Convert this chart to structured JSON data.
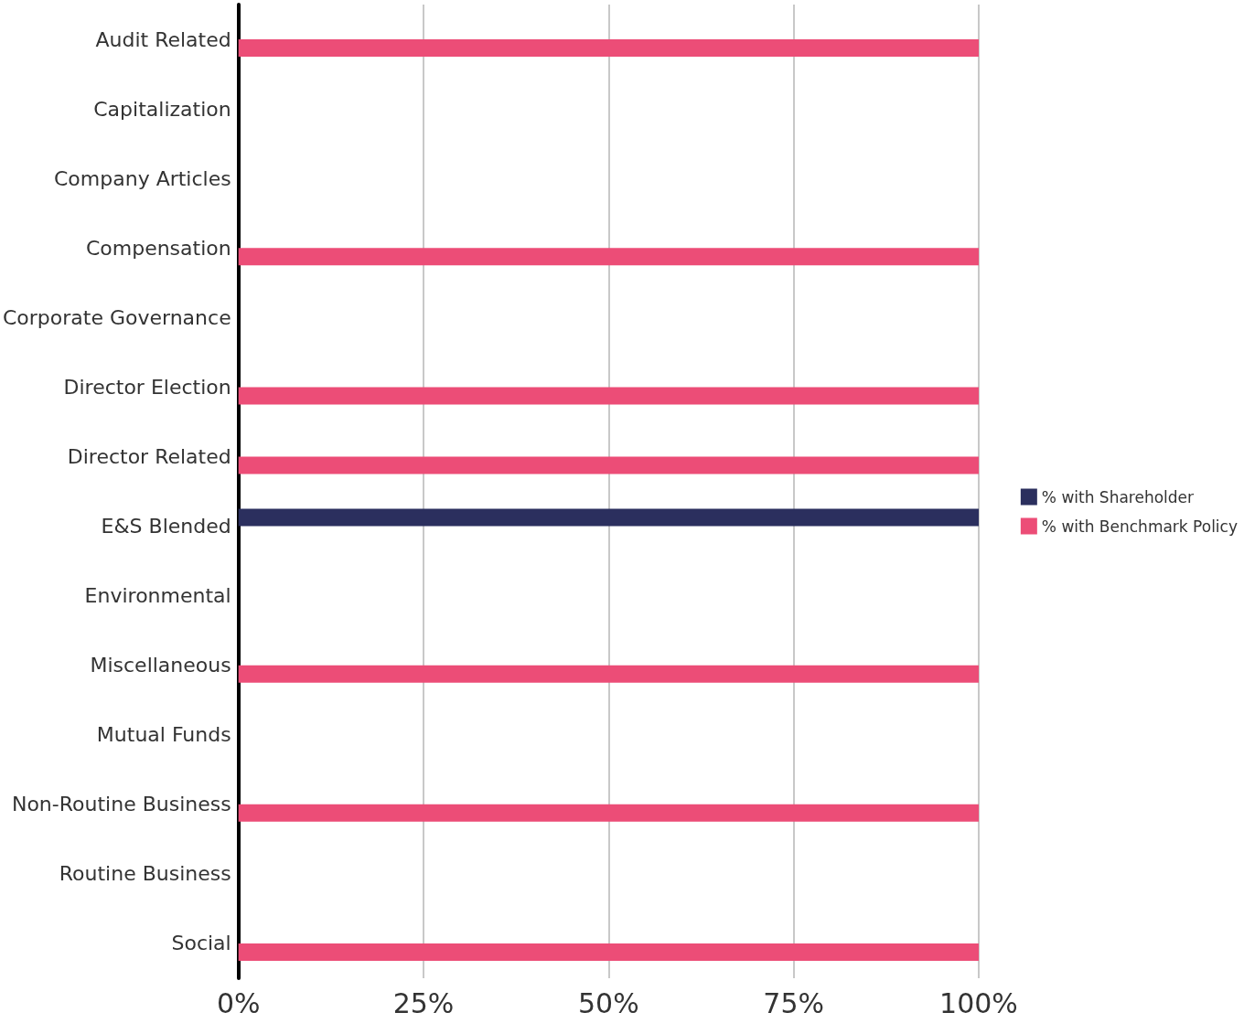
{
  "chart_data": {
    "type": "bar",
    "orientation": "horizontal",
    "categories": [
      "Audit Related",
      "Capitalization",
      "Company Articles",
      "Compensation",
      "Corporate Governance",
      "Director Election",
      "Director Related",
      "E&S Blended",
      "Environmental",
      "Miscellaneous",
      "Mutual Funds",
      "Non-Routine Business",
      "Routine Business",
      "Social"
    ],
    "series": [
      {
        "name": "% with Shareholder",
        "color": "#2b2f5e",
        "values": [
          0,
          0,
          0,
          0,
          0,
          0,
          0,
          100,
          0,
          0,
          0,
          0,
          0,
          0
        ]
      },
      {
        "name": "% with Benchmark Policy",
        "color": "#ec4d77",
        "values": [
          100,
          0,
          0,
          100,
          0,
          100,
          100,
          0,
          0,
          100,
          0,
          100,
          0,
          100
        ]
      }
    ],
    "xlim": [
      0,
      100
    ],
    "xticks": [
      {
        "value": 0,
        "label": "0%"
      },
      {
        "value": 25,
        "label": "25%"
      },
      {
        "value": 50,
        "label": "50%"
      },
      {
        "value": 75,
        "label": "75%"
      },
      {
        "value": 100,
        "label": "100%"
      }
    ],
    "grid": "x",
    "legend": "right"
  }
}
